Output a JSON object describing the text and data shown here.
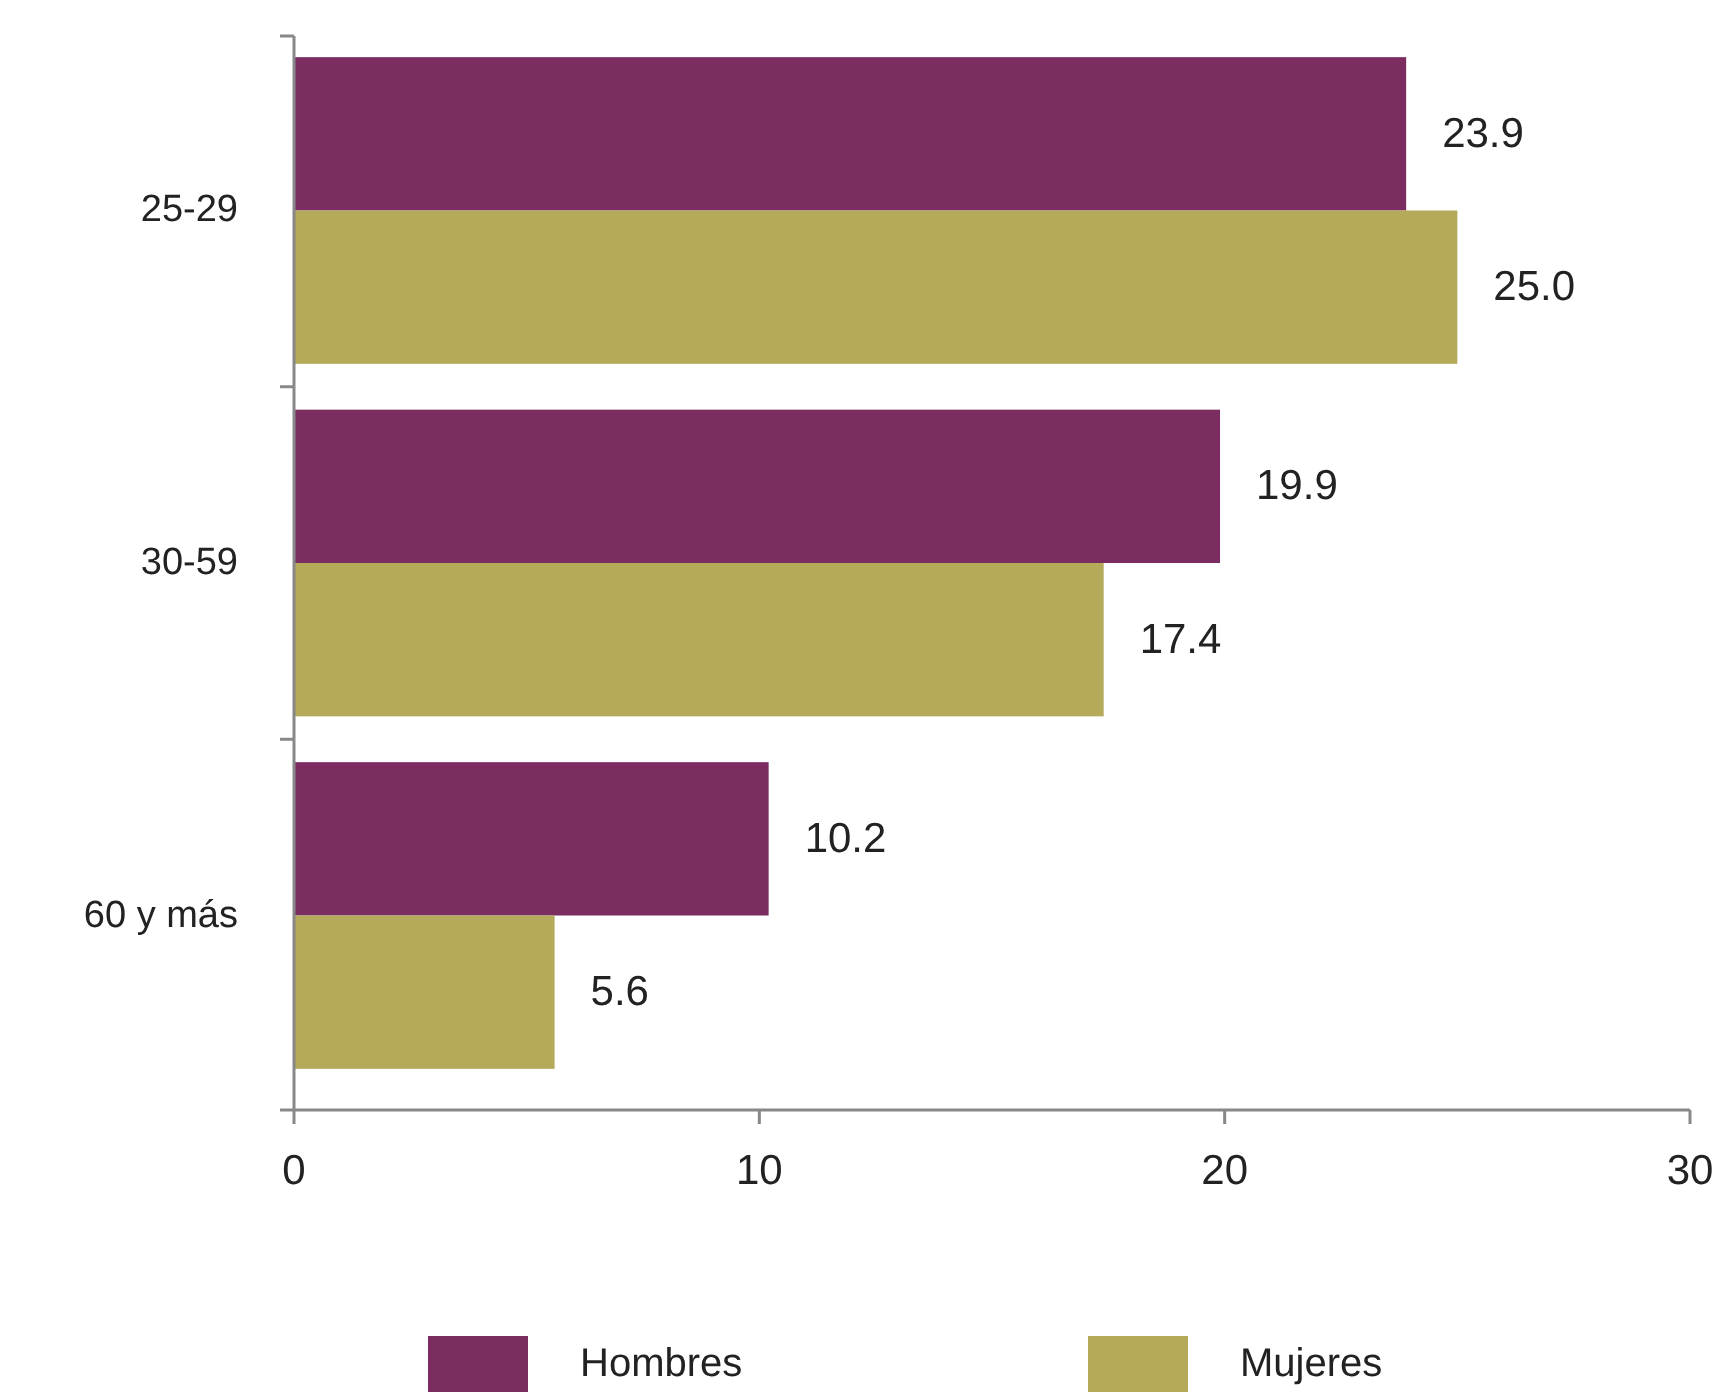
{
  "chart_data": {
    "type": "bar",
    "orientation": "horizontal",
    "categories": [
      "25-29",
      "30-59",
      "60 y más"
    ],
    "series": [
      {
        "name": "Hombres",
        "color": "#7b2d62",
        "values": [
          23.9,
          19.9,
          10.2
        ],
        "value_labels": [
          "23.9",
          "19.9",
          "10.2"
        ]
      },
      {
        "name": "Mujeres",
        "color": "#b5a95a",
        "values": [
          25.0,
          17.4,
          5.6
        ],
        "value_labels": [
          "25.0",
          "17.4",
          "5.6"
        ]
      }
    ],
    "xlim": [
      0,
      30
    ],
    "xticks": [
      0,
      10,
      20,
      30
    ],
    "legend": "bottom"
  }
}
